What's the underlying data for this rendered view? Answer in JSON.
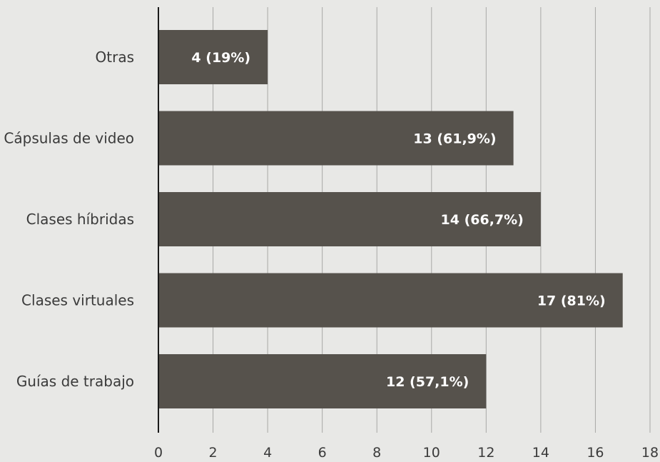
{
  "colors": {
    "background": "#e8e8e6",
    "bar": "#56524c",
    "grid": "#a8a8a6",
    "axis": "#1a1a1a",
    "text": "#3a3a3a",
    "bar_label": "#ffffff"
  },
  "chart_data": {
    "type": "bar",
    "orientation": "horizontal",
    "categories": [
      "Otras",
      "Cápsulas de video",
      "Clases híbridas",
      "Clases virtuales",
      "Guías de trabajo"
    ],
    "values": [
      4,
      13,
      14,
      17,
      12
    ],
    "data_labels": [
      "4 (19%)",
      "13 (61,9%)",
      "14 (66,7%)",
      "17 (81%)",
      "12 (57,1%)"
    ],
    "x_ticks": [
      "0",
      "2",
      "4",
      "6",
      "8",
      "10",
      "12",
      "14",
      "16",
      "18"
    ],
    "xlim": [
      0,
      18
    ],
    "title": "",
    "xlabel": "",
    "ylabel": "",
    "grid": "vertical",
    "legend": "none"
  }
}
